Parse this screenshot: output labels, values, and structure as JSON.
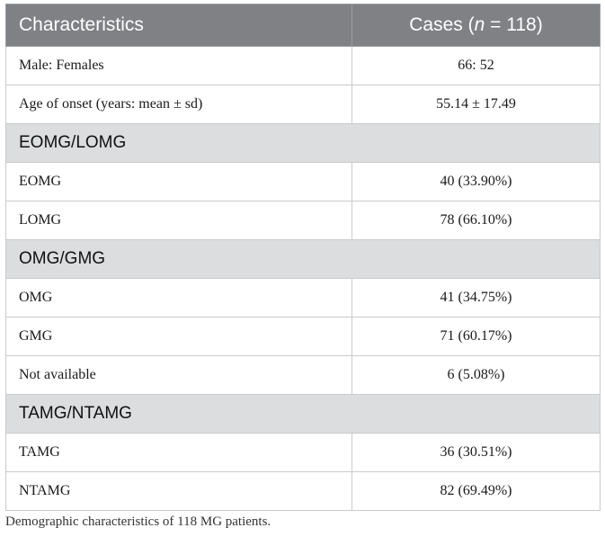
{
  "table": {
    "header": {
      "characteristics": "Characteristics",
      "cases_prefix": "Cases (",
      "cases_n": "n",
      "cases_suffix": " = 118)"
    },
    "rows": [
      {
        "type": "data",
        "label": "Male: Females",
        "value": "66: 52"
      },
      {
        "type": "data",
        "label": "Age of onset (years: mean ± sd)",
        "value": "55.14 ± 17.49"
      },
      {
        "type": "section",
        "label": "EOMG/LOMG"
      },
      {
        "type": "data",
        "label": "EOMG",
        "value": "40 (33.90%)"
      },
      {
        "type": "data",
        "label": "LOMG",
        "value": "78 (66.10%)"
      },
      {
        "type": "section",
        "label": "OMG/GMG"
      },
      {
        "type": "data",
        "label": "OMG",
        "value": "41 (34.75%)"
      },
      {
        "type": "data",
        "label": "GMG",
        "value": "71 (60.17%)"
      },
      {
        "type": "data",
        "label": "Not available",
        "value": "6 (5.08%)"
      },
      {
        "type": "section",
        "label": "TAMG/NTAMG"
      },
      {
        "type": "data",
        "label": "TAMG",
        "value": "36 (30.51%)"
      },
      {
        "type": "data",
        "label": "NTAMG",
        "value": "82 (69.49%)"
      }
    ]
  },
  "caption": "Demographic characteristics of 118 MG patients."
}
